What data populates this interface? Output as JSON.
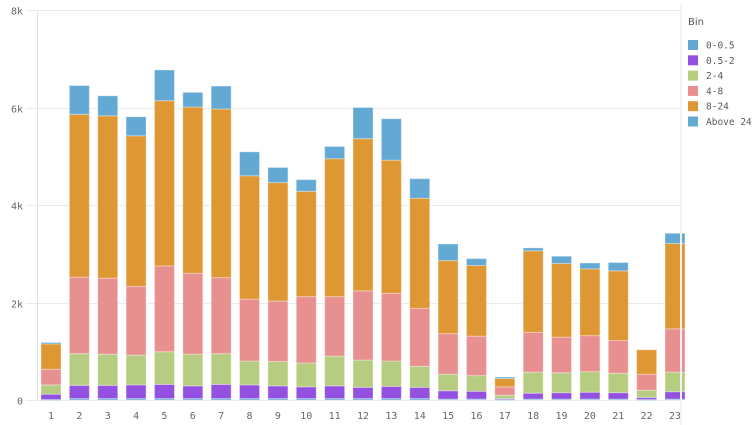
{
  "chart_data": {
    "type": "bar",
    "stacked": true,
    "title": "",
    "xlabel": "",
    "ylabel": "",
    "ylim": [
      0,
      8000
    ],
    "yticks": [
      {
        "value": 0,
        "label": "0"
      },
      {
        "value": 2000,
        "label": "2k"
      },
      {
        "value": 4000,
        "label": "4k"
      },
      {
        "value": 6000,
        "label": "6k"
      },
      {
        "value": 8000,
        "label": "8k"
      }
    ],
    "grid": true,
    "legend": {
      "title": "Bin",
      "position": "right"
    },
    "categories": [
      "1",
      "2",
      "3",
      "4",
      "5",
      "6",
      "7",
      "8",
      "9",
      "10",
      "11",
      "12",
      "13",
      "14",
      "15",
      "16",
      "17",
      "18",
      "19",
      "20",
      "21",
      "22",
      "23"
    ],
    "series": [
      {
        "name": "0-0.5",
        "color": "#63A9D4",
        "values": [
          10,
          30,
          30,
          30,
          30,
          30,
          30,
          30,
          30,
          30,
          30,
          30,
          30,
          30,
          20,
          20,
          10,
          20,
          20,
          20,
          20,
          10,
          20
        ]
      },
      {
        "name": "0.5-2",
        "color": "#9450E0",
        "values": [
          110,
          270,
          270,
          280,
          290,
          260,
          290,
          280,
          260,
          240,
          260,
          230,
          250,
          230,
          170,
          160,
          20,
          120,
          130,
          140,
          130,
          40,
          150
        ]
      },
      {
        "name": "2-4",
        "color": "#B6CC80",
        "values": [
          190,
          650,
          640,
          610,
          670,
          650,
          630,
          490,
          500,
          490,
          610,
          560,
          520,
          430,
          340,
          320,
          70,
          430,
          410,
          420,
          400,
          150,
          400
        ]
      },
      {
        "name": "4-8",
        "color": "#E8908F",
        "values": [
          320,
          1570,
          1560,
          1410,
          1760,
          1660,
          1560,
          1270,
          1240,
          1360,
          1220,
          1420,
          1390,
          1190,
          830,
          810,
          170,
          820,
          730,
          740,
          670,
          330,
          890
        ]
      },
      {
        "name": "8-24",
        "color": "#DE9733",
        "values": [
          520,
          3340,
          3330,
          3090,
          3390,
          3410,
          3460,
          2530,
          2430,
          2160,
          2830,
          3120,
          2730,
          2260,
          1500,
          1450,
          170,
          1670,
          1510,
          1370,
          1430,
          500,
          1750
        ]
      },
      {
        "name": "Above 24",
        "color": "#63A9D4",
        "values": [
          30,
          590,
          410,
          390,
          630,
          300,
          470,
          490,
          310,
          240,
          250,
          640,
          850,
          400,
          340,
          140,
          30,
          60,
          150,
          120,
          170,
          0,
          210
        ]
      }
    ]
  }
}
